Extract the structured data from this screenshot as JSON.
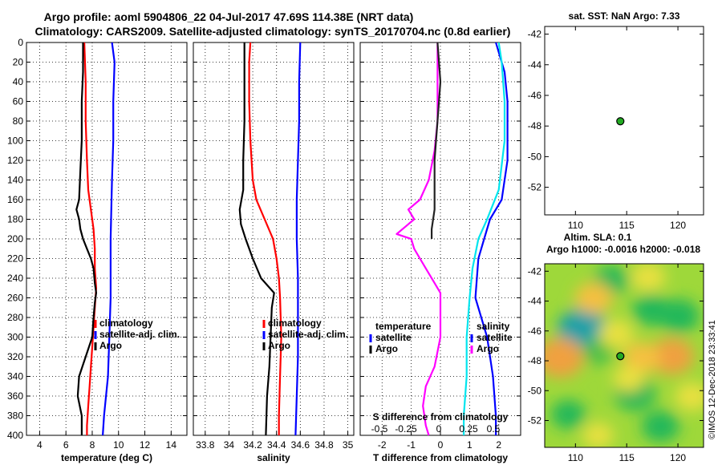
{
  "title": {
    "line1": "Argo profile: aoml 5904806_22 04-Jul-2017 47.69S 114.38E (NRT data)",
    "line2": "Climatology: CARS2009. Satellite-adjusted climatology: synTS_20170704.nc (0.8d earlier)"
  },
  "colors": {
    "climatology": "#ff0000",
    "satellite": "#0000ff",
    "argo": "#000000",
    "temp_diff": "#ff00ff",
    "sal_diff": "#00e5ee",
    "marker": "#22aa22"
  },
  "chart_data": [
    {
      "type": "line",
      "id": "temperature-profile",
      "xlabel": "temperature (deg C)",
      "xlim": [
        3,
        15.2
      ],
      "xticks": [
        "4",
        "6",
        "8",
        "10",
        "12",
        "14"
      ],
      "xtick_values": [
        4,
        6,
        8,
        10,
        12,
        14
      ],
      "yticks": [
        "0",
        "20",
        "40",
        "60",
        "80",
        "100",
        "120",
        "140",
        "160",
        "180",
        "200",
        "220",
        "240",
        "260",
        "280",
        "300",
        "320",
        "340",
        "360",
        "380",
        "400"
      ],
      "ylim": [
        0,
        400
      ],
      "y_reversed": true,
      "legend": [
        "climatology",
        "satellite-adj. clim.",
        "Argo"
      ],
      "series": [
        {
          "name": "climatology",
          "depth": [
            0,
            40,
            80,
            120,
            150,
            170,
            190,
            210,
            230,
            250,
            270,
            290,
            310,
            330,
            350,
            370,
            390,
            400
          ],
          "values": [
            7.4,
            7.5,
            7.5,
            7.6,
            7.7,
            7.9,
            8.1,
            8.2,
            8.2,
            8.3,
            8.2,
            8.1,
            8.0,
            7.9,
            7.8,
            7.7,
            7.6,
            7.6
          ]
        },
        {
          "name": "satellite-adj. clim.",
          "depth": [
            0,
            20,
            60,
            100,
            140,
            200,
            260,
            300,
            340,
            380,
            400
          ],
          "values": [
            9.5,
            9.7,
            9.6,
            9.6,
            9.5,
            9.4,
            9.4,
            9.3,
            9.2,
            8.9,
            8.8
          ]
        },
        {
          "name": "Argo",
          "depth": [
            0,
            30,
            60,
            100,
            130,
            160,
            170,
            180,
            190,
            200,
            210,
            220,
            230,
            245,
            255,
            265,
            280,
            300,
            320,
            340,
            360,
            380,
            400
          ],
          "values": [
            7.3,
            7.3,
            7.2,
            7.2,
            7.1,
            7.0,
            6.8,
            7.0,
            7.1,
            7.3,
            7.6,
            7.9,
            8.1,
            8.2,
            8.3,
            8.2,
            8.1,
            8.0,
            7.5,
            7.0,
            6.9,
            7.2,
            7.2
          ]
        }
      ]
    },
    {
      "type": "line",
      "id": "salinity-profile",
      "xlabel": "salinity",
      "xlim": [
        33.7,
        35.05
      ],
      "xticks": [
        "33.8",
        "34",
        "34.2",
        "34.4",
        "34.6",
        "34.8",
        "35"
      ],
      "xtick_values": [
        33.8,
        34,
        34.2,
        34.4,
        34.6,
        34.8,
        35
      ],
      "ylim": [
        0,
        400
      ],
      "y_reversed": true,
      "legend": [
        "climatology",
        "satellite-adj. clim.",
        "Argo"
      ],
      "series": [
        {
          "name": "climatology",
          "depth": [
            0,
            20,
            60,
            100,
            140,
            160,
            180,
            200,
            220,
            240,
            260,
            300,
            340,
            380,
            400
          ],
          "values": [
            34.18,
            34.17,
            34.17,
            34.18,
            34.2,
            34.23,
            34.3,
            34.37,
            34.4,
            34.42,
            34.43,
            34.44,
            34.43,
            34.42,
            34.42
          ]
        },
        {
          "name": "satellite-adj. clim.",
          "depth": [
            0,
            40,
            80,
            120,
            160,
            200,
            240,
            280,
            320,
            360,
            400
          ],
          "values": [
            34.6,
            34.59,
            34.59,
            34.58,
            34.57,
            34.57,
            34.58,
            34.58,
            34.58,
            34.57,
            34.56
          ]
        },
        {
          "name": "Argo",
          "depth": [
            0,
            40,
            80,
            120,
            150,
            170,
            185,
            200,
            220,
            240,
            255,
            270,
            300,
            330,
            360,
            400
          ],
          "values": [
            34.13,
            34.13,
            34.13,
            34.12,
            34.12,
            34.09,
            34.1,
            34.14,
            34.2,
            34.27,
            34.38,
            34.36,
            34.35,
            34.34,
            34.32,
            34.31
          ]
        }
      ]
    },
    {
      "type": "line",
      "id": "difference-profile",
      "xlabel": "T difference from climatology",
      "xlabel2": "S difference from climatology",
      "xlim": [
        -2.75,
        2.75
      ],
      "xticks": [
        "-2",
        "-1",
        "0",
        "1",
        "2"
      ],
      "xtick_values": [
        -2,
        -1,
        0,
        1,
        2
      ],
      "xticks2": [
        "-0.5",
        "-0.25",
        "0",
        "0.25",
        "0.5"
      ],
      "legend_left_title": "temperature",
      "legend_right_title": "salinity",
      "legend_left": [
        "satellite",
        "Argo"
      ],
      "legend_right": [
        "satellite",
        "Argo"
      ],
      "ylim": [
        0,
        400
      ],
      "y_reversed": true,
      "series": [
        {
          "name": "temperature Argo-clim",
          "depth": [
            0,
            40,
            80,
            110,
            140,
            160,
            170,
            180,
            190,
            195,
            200,
            210,
            220,
            230,
            245,
            255,
            270,
            300,
            330,
            350,
            370,
            390,
            400
          ],
          "values": [
            -0.1,
            -0.1,
            -0.1,
            -0.2,
            -0.4,
            -0.7,
            -1.1,
            -0.9,
            -1.3,
            -1.5,
            -1.0,
            -0.9,
            -0.7,
            -0.5,
            -0.2,
            0.0,
            0.0,
            0.0,
            -0.2,
            -0.5,
            -0.6,
            -0.5,
            -0.4
          ]
        },
        {
          "name": "temperature satellite-clim",
          "depth": [
            0,
            40,
            80,
            120,
            150,
            170,
            190,
            200
          ],
          "values": [
            -0.1,
            0.0,
            -0.1,
            -0.2,
            -0.2,
            -0.2,
            -0.3,
            -0.3
          ]
        },
        {
          "name": "salinity Argo-clim",
          "depth": [
            0,
            30,
            60,
            120,
            160,
            180,
            200,
            220,
            260,
            300,
            340,
            380,
            400
          ],
          "values": [
            1.9,
            2.2,
            2.3,
            2.3,
            2.1,
            1.7,
            1.5,
            1.3,
            1.2,
            1.6,
            1.8,
            1.9,
            1.9
          ]
        },
        {
          "name": "salinity satellite-clim",
          "depth": [
            0,
            20,
            60,
            100,
            150,
            180,
            200,
            230,
            260,
            300,
            340,
            380,
            400
          ],
          "values": [
            2.0,
            2.1,
            2.2,
            2.2,
            2.0,
            1.6,
            1.3,
            1.1,
            1.0,
            0.9,
            0.9,
            0.8,
            0.8
          ]
        }
      ]
    },
    {
      "type": "scatter",
      "id": "sst-map",
      "title": "sat. SST: NaN Argo: 7.33",
      "xlim": [
        107,
        122.5
      ],
      "ylim": [
        -53.8,
        -41.5
      ],
      "xticks": [
        "110",
        "115",
        "120"
      ],
      "xtick_values": [
        110,
        115,
        120
      ],
      "yticks": [
        "-42",
        "-44",
        "-46",
        "-48",
        "-50",
        "-52"
      ],
      "ytick_values": [
        -42,
        -44,
        -46,
        -48,
        -50,
        -52
      ],
      "points": [
        {
          "lon": 114.38,
          "lat": -47.69
        }
      ]
    },
    {
      "type": "heatmap",
      "id": "sla-map",
      "title": "Altim. SLA: 0.1",
      "subtitle": "Argo h1000: -0.0016 h2000: -0.018",
      "xlim": [
        107,
        122.5
      ],
      "ylim": [
        -53.8,
        -41.5
      ],
      "xticks": [
        "110",
        "115",
        "120"
      ],
      "xtick_values": [
        110,
        115,
        120
      ],
      "yticks": [
        "-42",
        "-44",
        "-46",
        "-48",
        "-50",
        "-52"
      ],
      "ytick_values": [
        -42,
        -44,
        -46,
        -48,
        -50,
        -52
      ],
      "points": [
        {
          "lon": 114.38,
          "lat": -47.69
        }
      ],
      "blobs": [
        {
          "lon": 110.7,
          "lat": -45.9,
          "value": -1.0
        },
        {
          "lon": 112.2,
          "lat": -47.4,
          "value": -0.4
        },
        {
          "lon": 117.4,
          "lat": -44.6,
          "value": -0.6
        },
        {
          "lon": 120.1,
          "lat": -45.0,
          "value": -0.7
        },
        {
          "lon": 115.8,
          "lat": -50.2,
          "value": -0.7
        },
        {
          "lon": 118.3,
          "lat": -52.4,
          "value": -0.6
        },
        {
          "lon": 109.3,
          "lat": -51.6,
          "value": -0.5
        },
        {
          "lon": 113.5,
          "lat": -42.6,
          "value": -0.5
        },
        {
          "lon": 108.5,
          "lat": -47.8,
          "value": 0.9
        },
        {
          "lon": 119.4,
          "lat": -47.7,
          "value": 0.8
        },
        {
          "lon": 111.8,
          "lat": -43.8,
          "value": 0.6
        },
        {
          "lon": 116.5,
          "lat": -47.8,
          "value": 0.6
        },
        {
          "lon": 114.0,
          "lat": -46.2,
          "value": 0.5
        },
        {
          "lon": 121.4,
          "lat": -50.4,
          "value": 0.5
        },
        {
          "lon": 117.1,
          "lat": -42.4,
          "value": 0.5
        },
        {
          "lon": 112.2,
          "lat": -53.0,
          "value": 0.4
        },
        {
          "lon": 115.2,
          "lat": -49.2,
          "value": 0.4
        }
      ]
    }
  ],
  "stamp": "©IMOS 12-Dec-2018 23:33:41"
}
